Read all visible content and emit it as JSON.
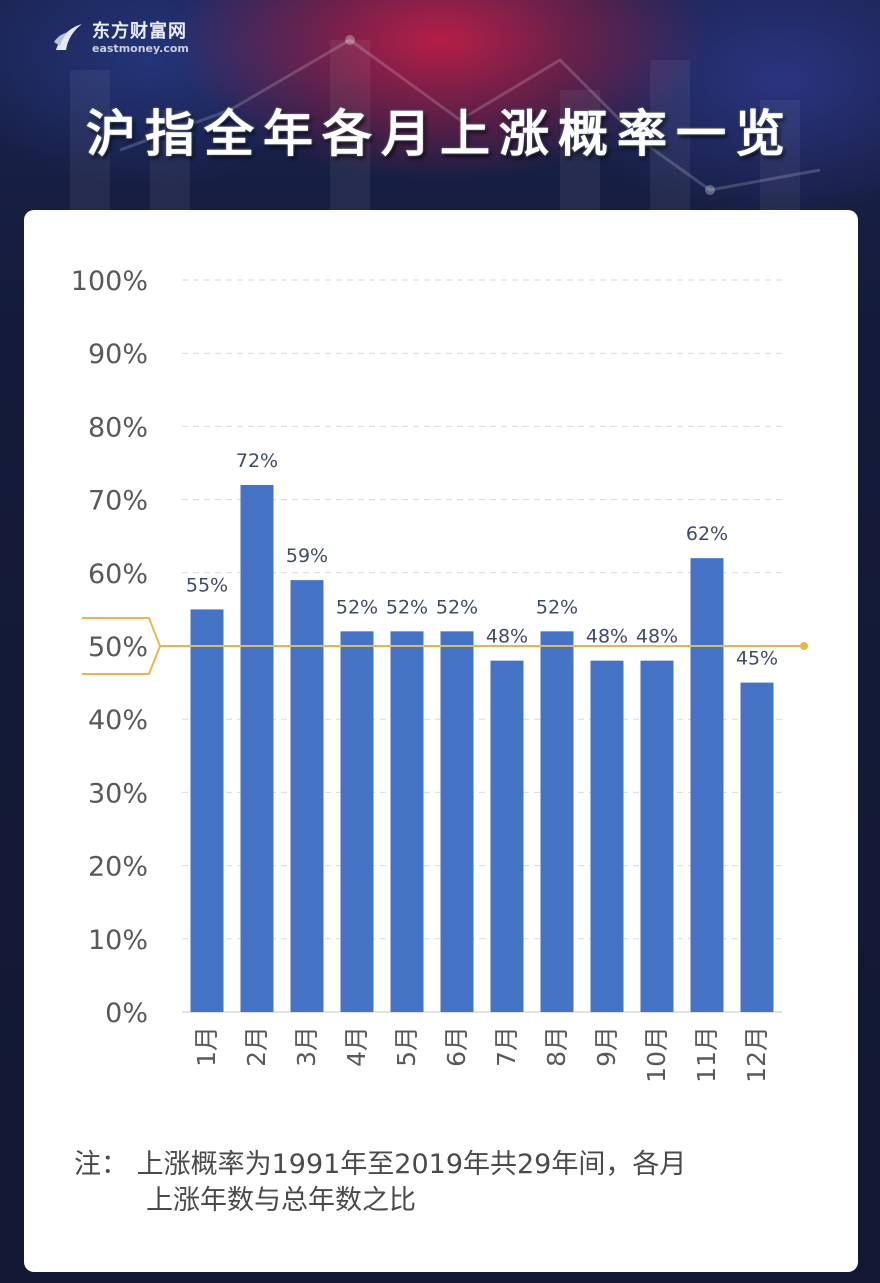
{
  "brand": {
    "name_cn": "东方财富网",
    "name_en": "eastmoney.com",
    "logo_icon": "eastmoney-logo-icon"
  },
  "title": "沪指全年各月上涨概率一览",
  "colors": {
    "bar": "#4472c4",
    "reference_line": "#e8b64a",
    "grid": "#d9d9d9",
    "axis_text": "#595959",
    "label_text": "#404a6a"
  },
  "chart_data": {
    "type": "bar",
    "title": "",
    "xlabel": "",
    "ylabel": "",
    "categories": [
      "1月",
      "2月",
      "3月",
      "4月",
      "5月",
      "6月",
      "7月",
      "8月",
      "9月",
      "10月",
      "11月",
      "12月"
    ],
    "values": [
      55,
      72,
      59,
      52,
      52,
      52,
      48,
      52,
      48,
      48,
      62,
      45
    ],
    "data_labels": [
      "55%",
      "72%",
      "59%",
      "52%",
      "52%",
      "52%",
      "48%",
      "52%",
      "48%",
      "48%",
      "62%",
      "45%"
    ],
    "ylim": [
      0,
      100
    ],
    "yticks": [
      0,
      10,
      20,
      30,
      40,
      50,
      60,
      70,
      80,
      90,
      100
    ],
    "ytick_labels": [
      "0%",
      "10%",
      "20%",
      "30%",
      "40%",
      "50%",
      "60%",
      "70%",
      "80%",
      "90%",
      "100%"
    ],
    "reference_line": 50,
    "grid": true,
    "grid_style": "dashed"
  },
  "note": {
    "line1": "注：  上涨概率为1991年至2019年共29年间，各月",
    "line2": "上涨年数与总年数之比"
  }
}
